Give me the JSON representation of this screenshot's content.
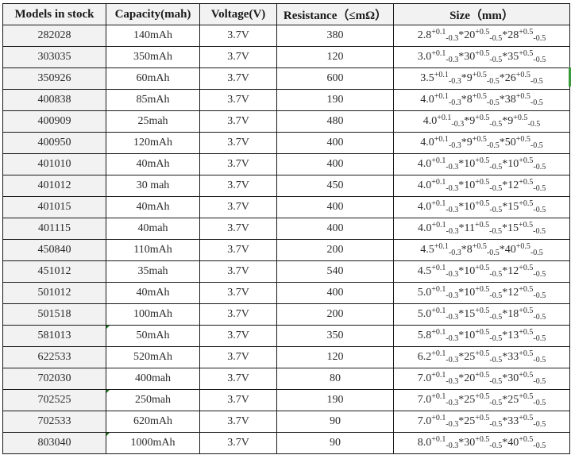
{
  "headers": [
    "Models in stock",
    "Capacity(mah)",
    "Voltage(V)",
    "Resistance（≤mΩ）",
    "Size（mm）"
  ],
  "tolerances": {
    "a_plus": "+0.1",
    "a_minus": "-0.3",
    "b_plus": "+0.5",
    "b_minus": "-0.5",
    "c_plus": "+0.5",
    "c_minus": "-0.5"
  },
  "rows": [
    {
      "model": "282028",
      "capacity": "140mAh",
      "voltage": "3.7V",
      "resistance": "380",
      "size": [
        "2.8",
        "20",
        "28"
      ]
    },
    {
      "model": "303035",
      "capacity": "350mAh",
      "voltage": "3.7V",
      "resistance": "120",
      "size": [
        "3.0",
        "30",
        "35"
      ]
    },
    {
      "model": "350926",
      "capacity": "60mAh",
      "voltage": "3.7V",
      "resistance": "600",
      "size": [
        "3.5",
        "9",
        "26"
      ]
    },
    {
      "model": "400838",
      "capacity": "85mAh",
      "voltage": "3.7V",
      "resistance": "190",
      "size": [
        "4.0",
        "8",
        "38"
      ]
    },
    {
      "model": "400909",
      "capacity": "25mah",
      "voltage": "3.7V",
      "resistance": "480",
      "size": [
        "4.0",
        "9",
        "9"
      ]
    },
    {
      "model": "400950",
      "capacity": "120mAh",
      "voltage": "3.7V",
      "resistance": "400",
      "size": [
        "4.0",
        "9",
        "50"
      ]
    },
    {
      "model": "401010",
      "capacity": "40mAh",
      "voltage": "3.7V",
      "resistance": "400",
      "size": [
        "4.0",
        "10",
        "10"
      ]
    },
    {
      "model": "401012",
      "capacity": "30 mah",
      "voltage": "3.7V",
      "resistance": "450",
      "size": [
        "4.0",
        "10",
        "12"
      ]
    },
    {
      "model": "401015",
      "capacity": "40mAh",
      "voltage": "3.7V",
      "resistance": "400",
      "size": [
        "4.0",
        "10",
        "15"
      ]
    },
    {
      "model": "401115",
      "capacity": "40mah",
      "voltage": "3.7V",
      "resistance": "400",
      "size": [
        "4.0",
        "11",
        "15"
      ]
    },
    {
      "model": "450840",
      "capacity": "110mAh",
      "voltage": "3.7V",
      "resistance": "200",
      "size": [
        "4.5",
        "8",
        "40"
      ]
    },
    {
      "model": "451012",
      "capacity": "35mah",
      "voltage": "3.7V",
      "resistance": "540",
      "size": [
        "4.5",
        "10",
        "12"
      ]
    },
    {
      "model": "501012",
      "capacity": "40mAh",
      "voltage": "3.7V",
      "resistance": "400",
      "size": [
        "5.0",
        "10",
        "12"
      ]
    },
    {
      "model": "501518",
      "capacity": "100mAh",
      "voltage": "3.7V",
      "resistance": "200",
      "size": [
        "5.0",
        "15",
        "18"
      ]
    },
    {
      "model": "581013",
      "capacity": "50mAh",
      "voltage": "3.7V",
      "resistance": "350",
      "size": [
        "5.8",
        "10",
        "13"
      ]
    },
    {
      "model": "622533",
      "capacity": "520mAh",
      "voltage": "3.7V",
      "resistance": "120",
      "size": [
        "6.2",
        "25",
        "33"
      ]
    },
    {
      "model": "702030",
      "capacity": "400mah",
      "voltage": "3.7V",
      "resistance": "80",
      "size": [
        "7.0",
        "20",
        "30"
      ]
    },
    {
      "model": "702525",
      "capacity": "250mah",
      "voltage": "3.7V",
      "resistance": "190",
      "size": [
        "7.0",
        "25",
        "25"
      ]
    },
    {
      "model": "702533",
      "capacity": "620mAh",
      "voltage": "3.7V",
      "resistance": "90",
      "size": [
        "7.0",
        "25",
        "33"
      ]
    },
    {
      "model": "803040",
      "capacity": "1000mAh",
      "voltage": "3.7V",
      "resistance": "90",
      "size": [
        "8.0",
        "30",
        "40"
      ]
    }
  ],
  "colors": {
    "header_bg": "#f2f2f2",
    "model_bg": "#f2f2f2",
    "cell_marker": "#1e7b1e"
  }
}
